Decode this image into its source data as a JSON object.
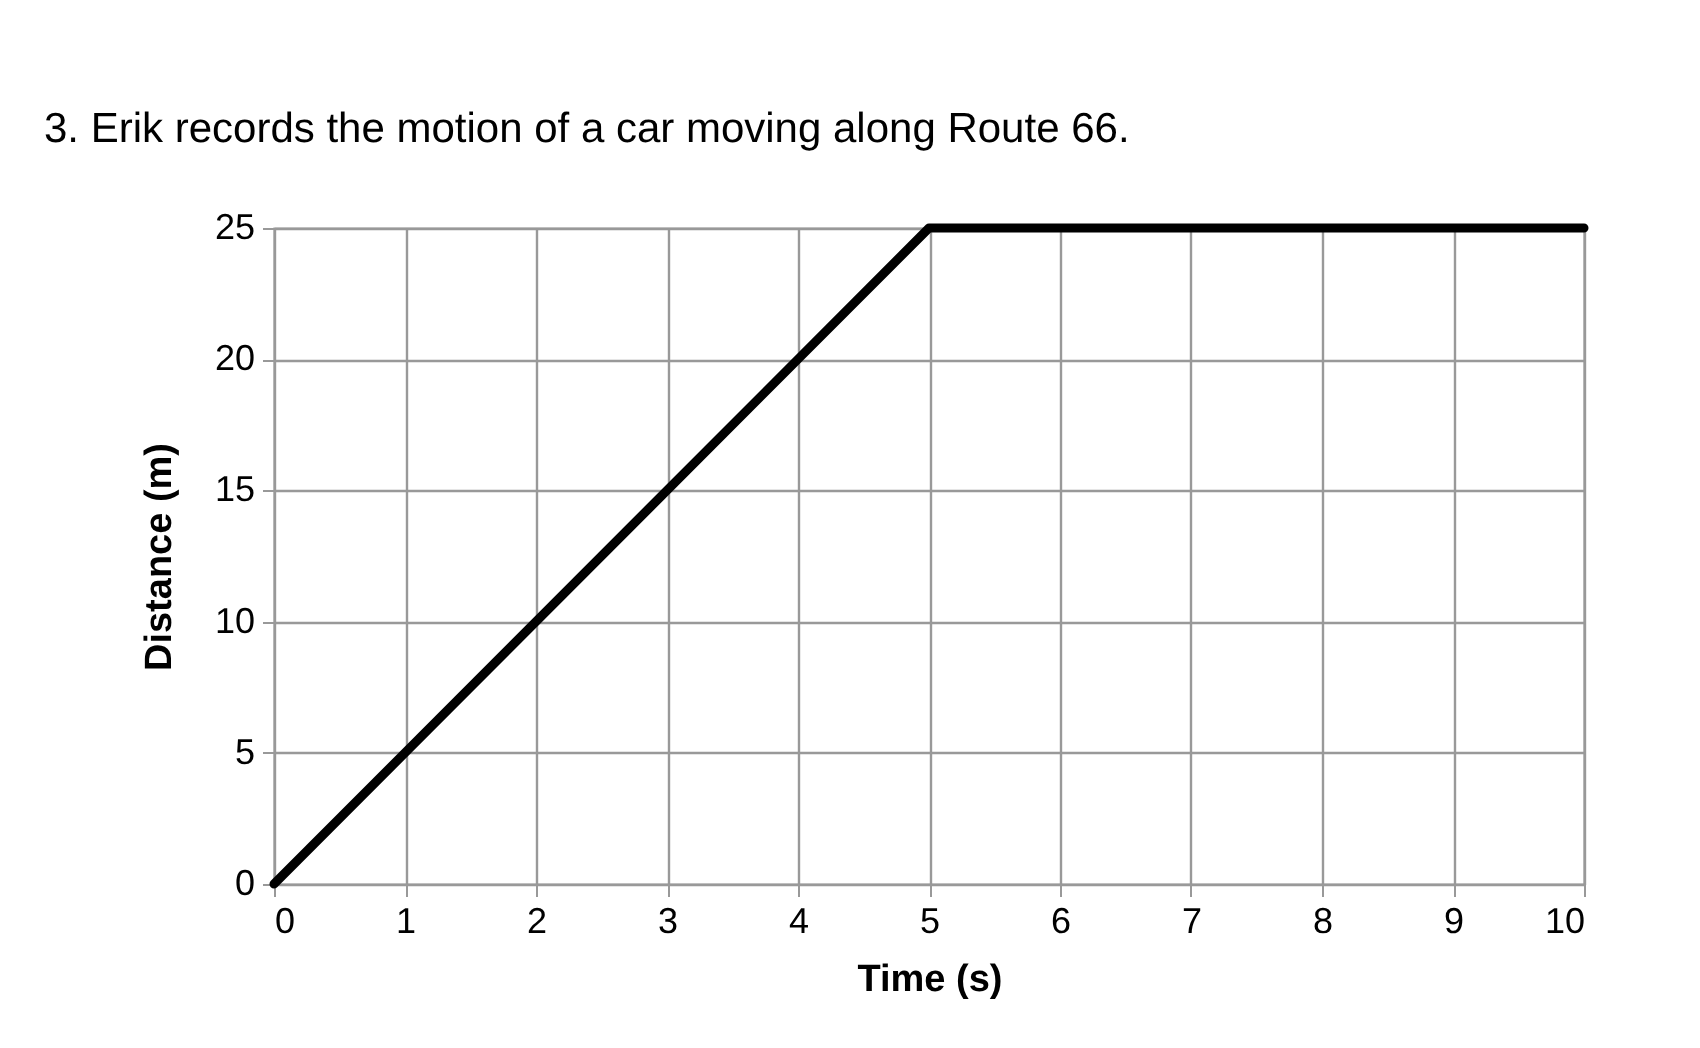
{
  "chart_data": {
    "type": "line",
    "title": "3. Erik records the motion of a car moving along Route 66.",
    "xlabel": "Time (s)",
    "ylabel": "Distance (m)",
    "x": [
      0,
      5,
      10
    ],
    "series": [
      {
        "color": "#000000",
        "values": [
          0,
          25,
          25
        ]
      }
    ],
    "xlim": [
      0,
      10
    ],
    "xticks": [
      0,
      1,
      2,
      3,
      4,
      5,
      6,
      7,
      8,
      9,
      10
    ],
    "ylim": [
      0,
      25
    ],
    "yticks": [
      0,
      5,
      10,
      15,
      20,
      25
    ],
    "grid": true,
    "line_style": "solid",
    "marker": "none"
  }
}
